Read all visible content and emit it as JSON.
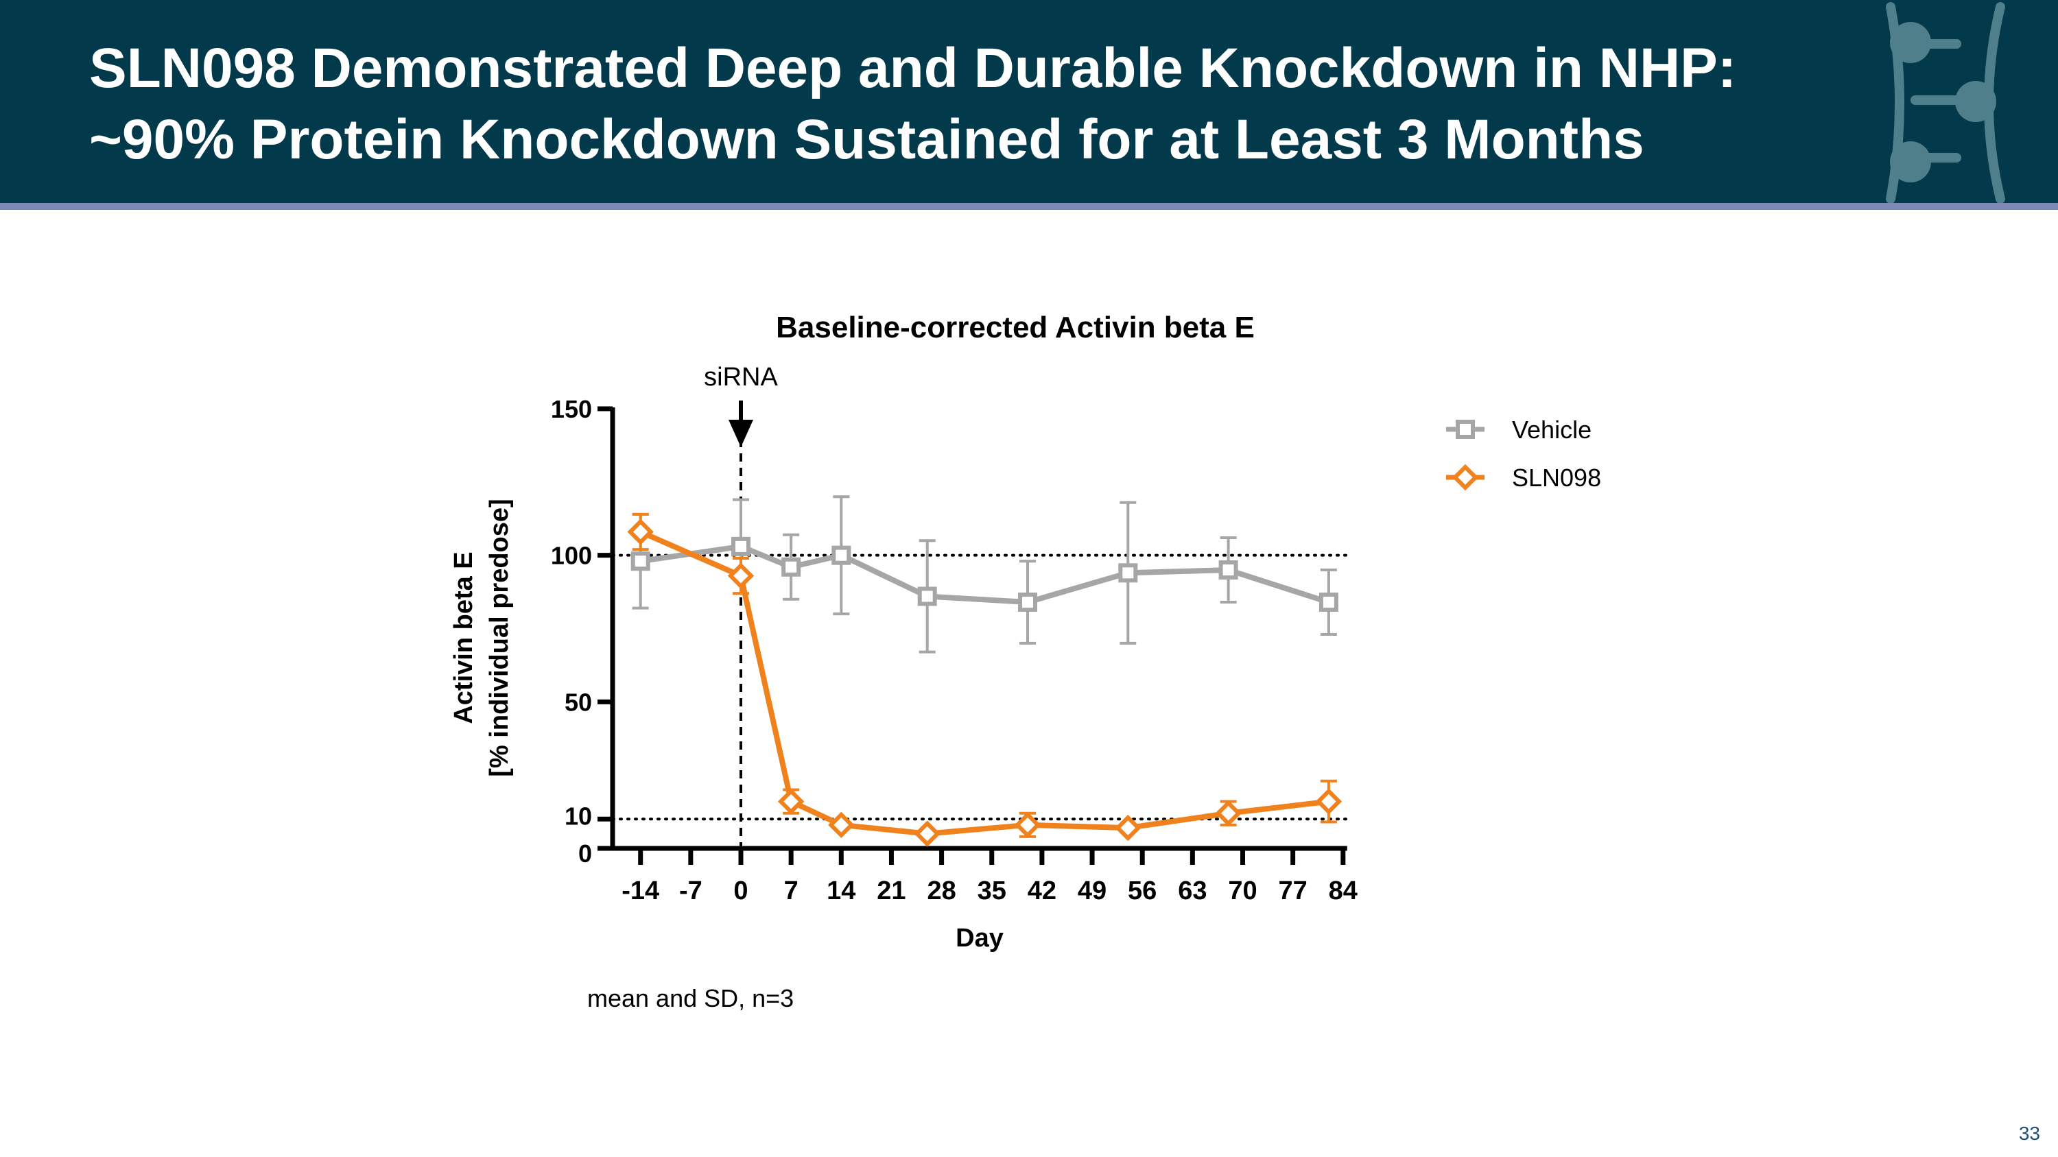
{
  "header": {
    "title_line1": "SLN098 Demonstrated Deep and Durable Knockdown in NHP:",
    "title_line2": "~90% Protein Knockdown Sustained for at Least 3 Months"
  },
  "footnote": "mean and SD, n=3",
  "page_number": "33",
  "colors": {
    "header_bg": "#033a4b",
    "header_accent": "#7c88b5",
    "vehicle": "#a6a6a6",
    "sln098": "#f0821e"
  },
  "chart_data": {
    "type": "line",
    "title": "Baseline-corrected Activin beta E",
    "xlabel": "Day",
    "ylabel_line1": "Activin beta E",
    "ylabel_line2": "[% individual predose]",
    "x_ticks": [
      -14,
      -7,
      0,
      7,
      14,
      21,
      28,
      35,
      42,
      49,
      56,
      63,
      70,
      77,
      84
    ],
    "y_ticks": [
      0,
      10,
      50,
      100,
      150
    ],
    "xlim": [
      -17,
      85
    ],
    "ylim": [
      0,
      150
    ],
    "reference_lines": [
      100,
      10
    ],
    "annotation": {
      "label": "siRNA",
      "x": 0
    },
    "legend_position": "right",
    "series": [
      {
        "name": "Vehicle",
        "marker": "square",
        "x": [
          -14,
          0,
          7,
          14,
          26,
          40,
          54,
          68,
          82
        ],
        "y": [
          98,
          103,
          96,
          100,
          86,
          84,
          94,
          95,
          84
        ],
        "sd": [
          16,
          16,
          11,
          20,
          19,
          14,
          24,
          11,
          11
        ]
      },
      {
        "name": "SLN098",
        "marker": "diamond",
        "x": [
          -14,
          0,
          7,
          14,
          26,
          40,
          54,
          68,
          82
        ],
        "y": [
          108,
          93,
          16,
          8,
          5,
          8,
          7,
          12,
          16
        ],
        "sd": [
          6,
          6,
          4,
          1,
          1,
          4,
          1,
          4,
          7
        ]
      }
    ]
  }
}
